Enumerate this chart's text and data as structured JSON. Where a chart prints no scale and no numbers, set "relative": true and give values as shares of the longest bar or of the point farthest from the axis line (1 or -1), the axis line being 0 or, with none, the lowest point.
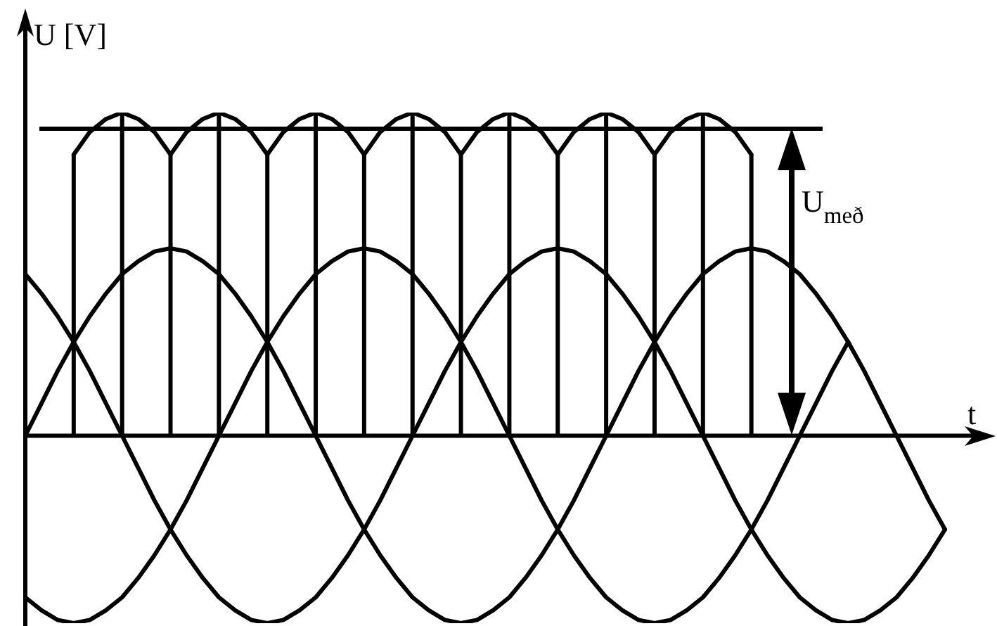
{
  "chart_data": {
    "type": "line",
    "xlabel": "t",
    "ylabel": "U [V]",
    "relative": true,
    "legend": false,
    "grid": false,
    "marker": "none",
    "line_style": "solid",
    "categories": [
      null,
      null,
      null,
      null,
      null,
      null,
      null,
      null,
      null,
      null,
      null,
      null,
      null,
      null,
      null,
      null,
      null,
      null,
      null,
      null,
      null,
      null,
      null,
      null,
      null,
      null,
      null,
      null,
      null,
      null,
      null,
      null,
      null,
      null,
      null,
      null,
      null,
      null,
      null,
      null,
      null,
      null,
      null,
      null,
      null,
      null,
      null,
      null,
      null,
      null,
      null,
      null,
      null,
      null,
      null,
      null,
      null,
      null
    ],
    "series": [
      {
        "color": "#000000",
        "values": [
          0,
          0.1,
          0.2,
          0.29,
          0.37,
          0.44,
          0.5,
          0.54,
          0.57,
          0.58,
          0.57,
          0.54,
          0.5,
          0.44,
          0.37,
          0.29,
          0.2,
          0.1,
          0,
          -0.1,
          -0.2,
          -0.29,
          -0.37,
          -0.44,
          -0.5,
          -0.54,
          -0.57,
          -0.58,
          -0.57,
          -0.54,
          -0.5,
          -0.44,
          -0.37,
          -0.29,
          -0.2,
          -0.1,
          0,
          0.1,
          0.2,
          0.29,
          0.37,
          0.44,
          0.5,
          0.54,
          0.57,
          0.58,
          0.57,
          0.54,
          0.5,
          0.44,
          0.37,
          0.29,
          0.2,
          0.1,
          0,
          -0.1,
          -0.2,
          -0.29
        ]
      },
      {
        "color": "#000000",
        "values": [
          -0.5,
          -0.54,
          -0.57,
          -0.58,
          -0.57,
          -0.54,
          -0.5,
          -0.44,
          -0.37,
          -0.29,
          -0.2,
          -0.1,
          0,
          0.1,
          0.2,
          0.29,
          0.37,
          0.44,
          0.5,
          0.54,
          0.57,
          0.58,
          0.57,
          0.54,
          0.5,
          0.44,
          0.37,
          0.29,
          0.2,
          0.1,
          0,
          -0.1,
          -0.2,
          -0.29,
          -0.37,
          -0.44,
          -0.5,
          -0.54,
          -0.57,
          -0.58,
          -0.57,
          -0.54,
          -0.5,
          -0.44,
          -0.37,
          -0.29,
          -0.2,
          -0.1,
          0,
          0.1,
          0.2,
          0.29,
          null,
          null,
          null,
          null,
          null,
          null
        ]
      },
      {
        "color": "#000000",
        "values": [
          0.5,
          0.44,
          0.37,
          0.29,
          0.2,
          0.1,
          0,
          -0.1,
          -0.2,
          -0.29,
          -0.37,
          -0.44,
          -0.5,
          -0.54,
          -0.57,
          -0.58,
          -0.57,
          -0.54,
          -0.5,
          -0.44,
          -0.37,
          -0.29,
          -0.2,
          -0.1,
          0,
          0.1,
          0.2,
          0.29,
          0.37,
          0.44,
          0.5,
          0.54,
          0.57,
          0.58,
          0.57,
          0.54,
          0.5,
          0.44,
          0.37,
          0.29,
          0.2,
          0.1,
          0,
          -0.1,
          -0.2,
          -0.29,
          -0.37,
          -0.44,
          -0.5,
          -0.54,
          -0.57,
          -0.58,
          -0.57,
          -0.54,
          -0.5,
          -0.44,
          -0.37,
          -0.29
        ]
      },
      {
        "color": "#000000",
        "values": [
          null,
          null,
          null,
          0.87,
          0.94,
          0.98,
          1,
          0.98,
          0.94,
          0.87,
          0.94,
          0.98,
          1,
          0.98,
          0.94,
          0.87,
          0.94,
          0.98,
          1,
          0.98,
          0.94,
          0.87,
          0.94,
          0.98,
          1,
          0.98,
          0.94,
          0.87,
          0.94,
          0.98,
          1,
          0.98,
          0.94,
          0.87,
          0.94,
          0.98,
          1,
          0.98,
          0.94,
          0.87,
          0.94,
          0.98,
          1,
          0.98,
          0.94,
          0.87,
          null,
          null,
          null,
          null,
          null,
          null,
          null,
          null,
          null,
          null,
          null,
          null
        ]
      }
    ],
    "ref_lines": [
      {
        "axis": "y",
        "value": 0.95,
        "label": "U$_{með}$"
      }
    ]
  }
}
